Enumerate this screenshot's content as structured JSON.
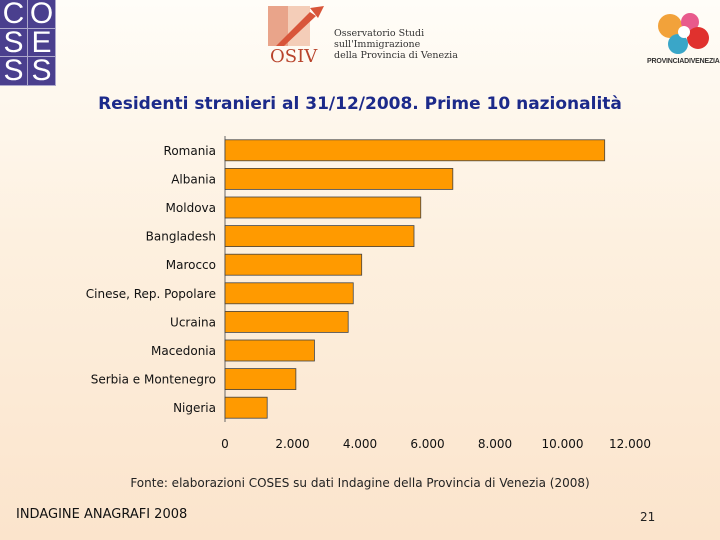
{
  "header": {
    "coses_letters": [
      "C",
      "O",
      "S",
      "E",
      "S",
      "S"
    ],
    "osiv_abbr": "OSIV",
    "osiv_lines": [
      "Osservatorio Studi",
      "sull'Immigrazione",
      "della Provincia di Venezia"
    ],
    "provincia_name": "PROVINCIADIVENEZIA"
  },
  "chart_data": {
    "type": "bar",
    "orientation": "horizontal",
    "title": "Residenti stranieri al 31/12/2008. Prime 10 nazionalità",
    "categories": [
      "Romania",
      "Albania",
      "Moldova",
      "Bangladesh",
      "Marocco",
      "Cinese, Rep. Popolare",
      "Ucraina",
      "Macedonia",
      "Serbia e Montenegro",
      "Nigeria"
    ],
    "values": [
      11250,
      6750,
      5800,
      5600,
      4050,
      3800,
      3650,
      2650,
      2100,
      1250
    ],
    "xlim": [
      0,
      12000
    ],
    "xticks": [
      0,
      2000,
      4000,
      6000,
      8000,
      10000,
      12000
    ],
    "xtick_labels": [
      "0",
      "2.000",
      "4.000",
      "6.000",
      "8.000",
      "10.000",
      "12.000"
    ],
    "bar_color": "#ff9a00",
    "grid": false,
    "legend": "none"
  },
  "source": "Fonte: elaborazioni COSES su dati Indagine della Provincia di Venezia (2008)",
  "footer": {
    "label": "INDAGINE ANAGRAFI 2008",
    "page_number": "21"
  }
}
